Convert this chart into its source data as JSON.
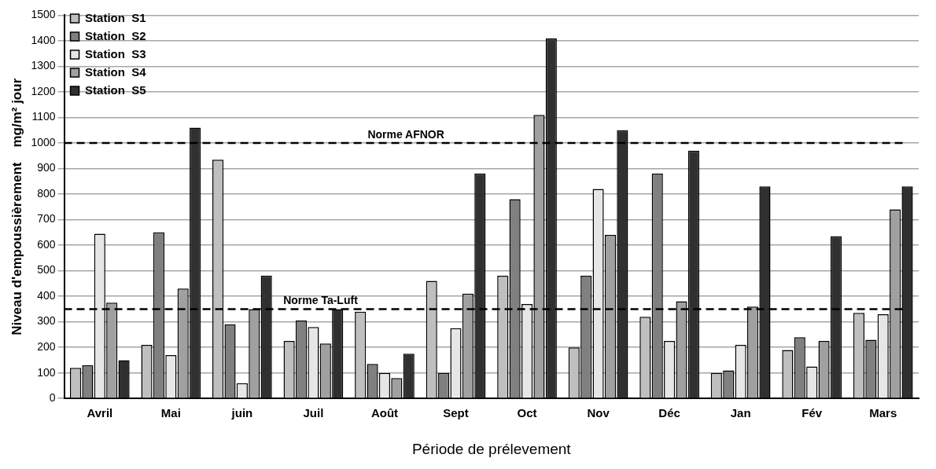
{
  "chart_data": {
    "type": "bar",
    "xlabel": "Période de prélevement",
    "ylabel": "Niveau d'empoussièrement    mg/m² jour",
    "categories": [
      "Avril",
      "Mai",
      "juin",
      "Juil",
      "Août",
      "Sept",
      "Oct",
      "Nov",
      "Déc",
      "Jan",
      "Fév",
      "Mars"
    ],
    "series": [
      {
        "name": "Station  S1",
        "color": "#bfbfbf",
        "values": [
          120,
          210,
          935,
          225,
          340,
          460,
          480,
          200,
          320,
          100,
          190,
          335
        ]
      },
      {
        "name": "Station  S2",
        "color": "#808080",
        "values": [
          130,
          650,
          290,
          305,
          135,
          100,
          780,
          480,
          880,
          110,
          240,
          230
        ]
      },
      {
        "name": "Station  S3",
        "color": "#e6e6e6",
        "values": [
          645,
          170,
          60,
          280,
          100,
          275,
          370,
          820,
          225,
          210,
          125,
          330
        ]
      },
      {
        "name": "Station  S4",
        "color": "#a0a0a0",
        "values": [
          375,
          430,
          350,
          215,
          80,
          410,
          1110,
          640,
          380,
          360,
          225,
          740
        ]
      },
      {
        "name": "Station  S5",
        "color": "#303030",
        "values": [
          150,
          1060,
          480,
          350,
          175,
          880,
          1410,
          1050,
          970,
          830,
          635,
          830
        ]
      }
    ],
    "ylim": [
      0,
      1500
    ],
    "yticks": [
      0,
      100,
      200,
      300,
      400,
      500,
      600,
      700,
      800,
      900,
      1000,
      1100,
      1200,
      1300,
      1400,
      1500
    ],
    "grid": "y",
    "legend": "top left",
    "ref_lines": [
      {
        "axis": "y",
        "value": 1000,
        "label": "Norme AFNOR",
        "color": "#000000",
        "line_style": "dashed"
      },
      {
        "axis": "y",
        "value": 350,
        "label": "Norme Ta-Luft",
        "color": "#000000",
        "line_style": "dashed"
      }
    ]
  }
}
